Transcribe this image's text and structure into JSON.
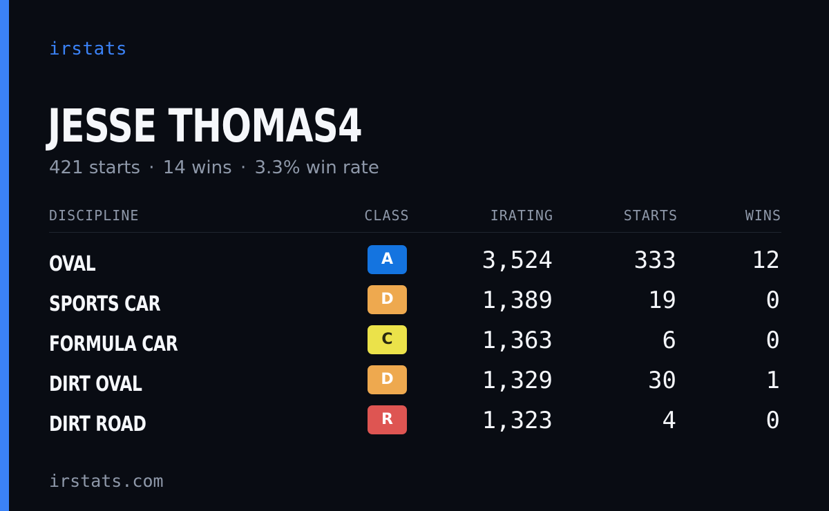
{
  "brand": "irstats",
  "driver": {
    "name": "JESSE THOMAS4",
    "summary": {
      "starts": "421 starts",
      "wins": "14 wins",
      "win_rate": "3.3% win rate",
      "separator": "·"
    }
  },
  "table": {
    "headers": {
      "discipline": "DISCIPLINE",
      "class": "CLASS",
      "irating": "IRATING",
      "starts": "STARTS",
      "wins": "WINS"
    },
    "rows": [
      {
        "discipline": "OVAL",
        "class": "A",
        "class_bg": "#1474e0",
        "class_fg": "#ffffff",
        "irating": "3,524",
        "starts": "333",
        "wins": "12"
      },
      {
        "discipline": "SPORTS CAR",
        "class": "D",
        "class_bg": "#eea94f",
        "class_fg": "#ffffff",
        "irating": "1,389",
        "starts": "19",
        "wins": "0"
      },
      {
        "discipline": "FORMULA CAR",
        "class": "C",
        "class_bg": "#ebe24a",
        "class_fg": "#2a2a10",
        "irating": "1,363",
        "starts": "6",
        "wins": "0"
      },
      {
        "discipline": "DIRT OVAL",
        "class": "D",
        "class_bg": "#eea94f",
        "class_fg": "#ffffff",
        "irating": "1,329",
        "starts": "30",
        "wins": "1"
      },
      {
        "discipline": "DIRT ROAD",
        "class": "R",
        "class_bg": "#de5552",
        "class_fg": "#ffffff",
        "irating": "1,323",
        "starts": "4",
        "wins": "0"
      }
    ]
  },
  "footer": "irstats.com",
  "colors": {
    "background": "#090c13",
    "accent": "#3b82f6",
    "muted": "#8e98a9",
    "text": "#f5f7fb"
  }
}
